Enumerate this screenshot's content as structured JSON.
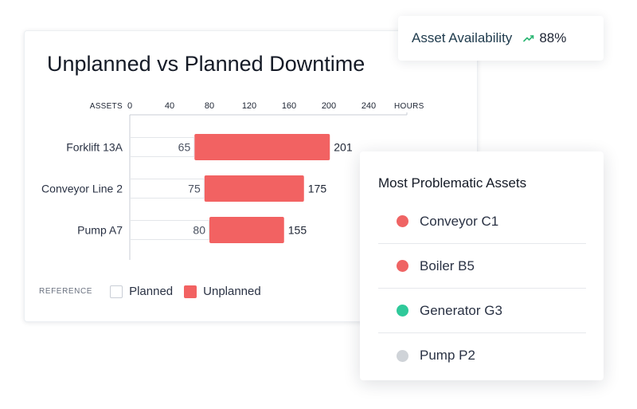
{
  "chart_data": {
    "type": "bar",
    "orientation": "horizontal",
    "stacked": true,
    "title": "Unplanned vs Planned Downtime",
    "ylabel": "ASSETS",
    "xlabel": "HOURS",
    "xlim": [
      0,
      240
    ],
    "xticks": [
      0,
      40,
      80,
      120,
      160,
      200,
      240
    ],
    "categories": [
      "Forklift 13A",
      "Conveyor Line 2",
      "Pump A7"
    ],
    "series": [
      {
        "name": "Planned",
        "values": [
          65,
          75,
          80
        ],
        "color": "#ffffff"
      },
      {
        "name": "Unplanned",
        "values": [
          136,
          100,
          75
        ],
        "color": "#f26262"
      }
    ],
    "totals": [
      201,
      175,
      155
    ],
    "legend": {
      "caption": "REFERENCE",
      "position": "bottom-left",
      "items": [
        "Planned",
        "Unplanned"
      ]
    }
  },
  "kpi": {
    "label": "Asset Availability",
    "value": "88%",
    "trend_icon": "trend-up-icon",
    "trend_color": "#2bb673"
  },
  "problem_assets": {
    "title": "Most Problematic Assets",
    "items": [
      {
        "name": "Conveyor C1",
        "color": "#ef6464"
      },
      {
        "name": "Boiler B5",
        "color": "#ef6464"
      },
      {
        "name": "Generator G3",
        "color": "#2fc99a"
      },
      {
        "name": "Pump P2",
        "color": "#cfd3d8"
      }
    ]
  }
}
